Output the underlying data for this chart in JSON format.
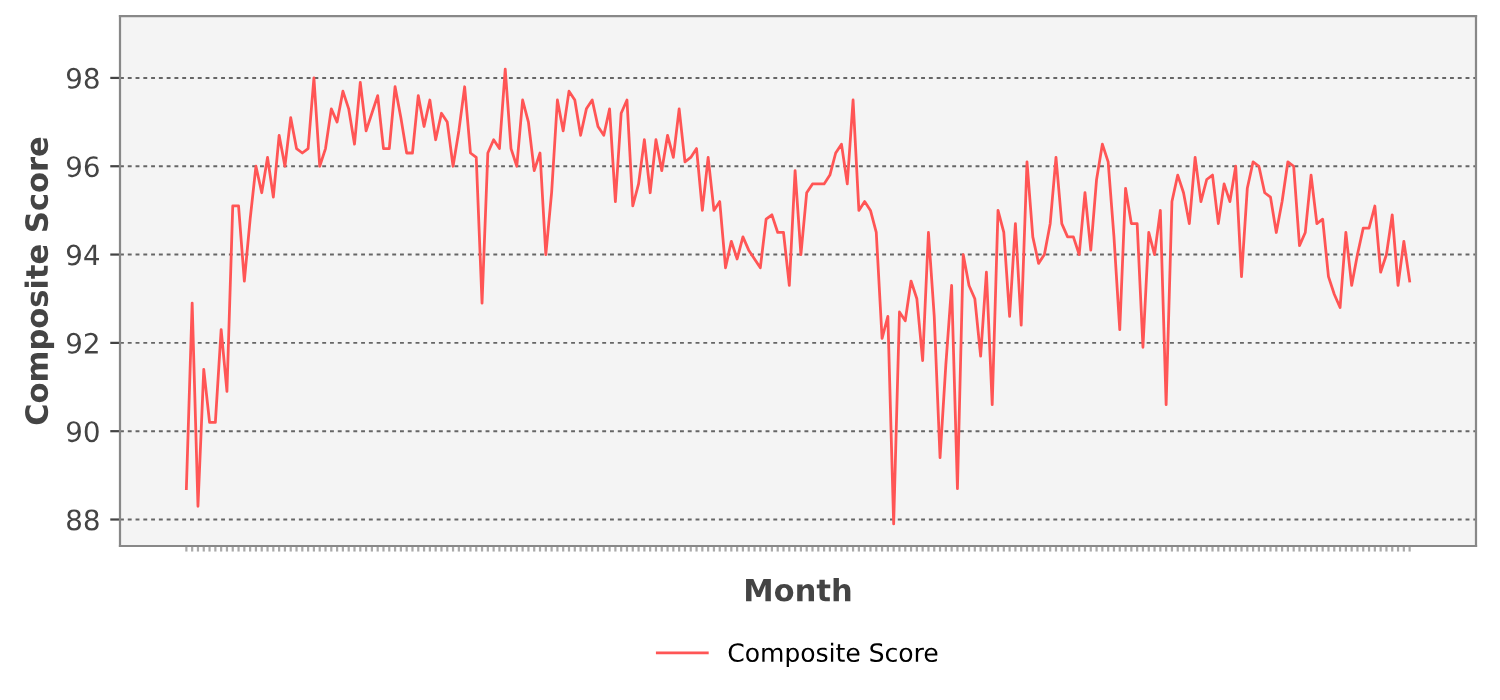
{
  "chart_data": {
    "type": "line",
    "xlabel": "Month",
    "ylabel": "Composite Score",
    "ylim": [
      87.4,
      99.4
    ],
    "yticks": [
      88,
      90,
      92,
      94,
      96,
      98
    ],
    "grid": "y",
    "legend": "bottom",
    "marker": "none",
    "line_style": "solid",
    "categories": [
      null,
      null,
      null,
      null,
      null,
      null,
      null,
      null,
      null,
      null,
      null,
      null,
      null,
      null,
      null,
      null,
      null,
      null,
      null,
      null,
      null,
      null,
      null,
      null,
      null,
      null,
      null,
      null,
      null,
      null,
      null,
      null,
      null,
      null,
      null,
      null,
      null,
      null,
      null,
      null,
      null,
      null,
      null,
      null,
      null,
      null,
      null,
      null,
      null,
      null,
      null,
      null,
      null,
      null,
      null,
      null,
      null,
      null,
      null,
      null,
      null,
      null,
      null,
      null,
      null,
      null,
      null,
      null,
      null,
      null,
      null,
      null,
      null,
      null,
      null,
      null,
      null,
      null,
      null,
      null,
      null,
      null,
      null,
      null,
      null,
      null,
      null,
      null,
      null,
      null,
      null,
      null,
      null,
      null,
      null,
      null,
      null,
      null,
      null,
      null,
      null,
      null,
      null,
      null,
      null,
      null,
      null,
      null,
      null,
      null,
      null,
      null,
      null,
      null,
      null,
      null,
      null,
      null,
      null,
      null,
      null,
      null,
      null,
      null,
      null,
      null,
      null,
      null,
      null,
      null,
      null,
      null,
      null,
      null,
      null,
      null,
      null,
      null,
      null,
      null,
      null,
      null,
      null,
      null,
      null,
      null,
      null,
      null,
      null,
      null,
      null,
      null,
      null,
      null,
      null,
      null,
      null,
      null,
      null,
      null,
      null,
      null,
      null,
      null,
      null,
      null,
      null,
      null,
      null,
      null,
      null,
      null,
      null,
      null,
      null,
      null,
      null,
      null,
      null,
      null,
      null,
      null,
      null,
      null,
      null,
      null,
      null,
      null,
      null,
      null,
      null,
      null,
      null,
      null,
      null,
      null,
      null,
      null,
      null,
      null,
      null,
      null,
      null,
      null,
      null,
      null,
      null,
      null,
      null,
      null,
      null,
      null
    ],
    "series": [
      {
        "name": "Composite Score",
        "color": "#ff5555",
        "values": [
          88.7,
          92.9,
          88.3,
          91.4,
          90.2,
          90.2,
          92.3,
          90.9,
          95.1,
          95.1,
          93.4,
          94.8,
          96.0,
          95.4,
          96.2,
          95.3,
          96.7,
          96.0,
          97.1,
          96.4,
          96.3,
          96.4,
          98.0,
          96.0,
          96.4,
          97.3,
          97.0,
          97.7,
          97.3,
          96.5,
          97.9,
          96.8,
          97.2,
          97.6,
          96.4,
          96.4,
          97.8,
          97.1,
          96.3,
          96.3,
          97.6,
          96.9,
          97.5,
          96.6,
          97.2,
          97.0,
          96.0,
          96.8,
          97.8,
          96.3,
          96.2,
          92.9,
          96.3,
          96.6,
          96.4,
          98.2,
          96.4,
          96.0,
          97.5,
          97.0,
          95.9,
          96.3,
          94.0,
          95.4,
          97.5,
          96.8,
          97.7,
          97.5,
          96.7,
          97.3,
          97.5,
          96.9,
          96.7,
          97.3,
          95.2,
          97.2,
          97.5,
          95.1,
          95.6,
          96.6,
          95.4,
          96.6,
          95.9,
          96.7,
          96.2,
          97.3,
          96.1,
          96.2,
          96.4,
          95.0,
          96.2,
          95.0,
          95.2,
          93.7,
          94.3,
          93.9,
          94.4,
          94.1,
          93.9,
          93.7,
          94.8,
          94.9,
          94.5,
          94.5,
          93.3,
          95.9,
          94.0,
          95.4,
          95.6,
          95.6,
          95.6,
          95.8,
          96.3,
          96.5,
          95.6,
          97.5,
          95.0,
          95.2,
          95.0,
          94.5,
          92.1,
          92.6,
          87.9,
          92.7,
          92.5,
          93.4,
          93.0,
          91.6,
          94.5,
          92.6,
          89.4,
          91.5,
          93.3,
          88.7,
          94.0,
          93.3,
          93.0,
          91.7,
          93.6,
          90.6,
          95.0,
          94.5,
          92.6,
          94.7,
          92.4,
          96.1,
          94.4,
          93.8,
          94.0,
          94.7,
          96.2,
          94.7,
          94.4,
          94.4,
          94.0,
          95.4,
          94.1,
          95.7,
          96.5,
          96.1,
          94.4,
          92.3,
          95.5,
          94.7,
          94.7,
          91.9,
          94.5,
          94.0,
          95.0,
          90.6,
          95.2,
          95.8,
          95.4,
          94.7,
          96.2,
          95.2,
          95.7,
          95.8,
          94.7,
          95.6,
          95.2,
          96.0,
          93.5,
          95.5,
          96.1,
          96.0,
          95.4,
          95.3,
          94.5,
          95.2,
          96.1,
          96.0,
          94.2,
          94.5,
          95.8,
          94.7,
          94.8,
          93.5,
          93.1,
          92.8,
          94.5,
          93.3,
          94.0,
          94.6,
          94.6,
          95.1,
          93.6,
          94.0,
          94.9,
          93.3,
          94.3,
          93.4
        ]
      }
    ]
  }
}
